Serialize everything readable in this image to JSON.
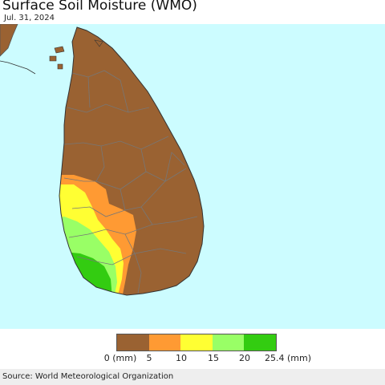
{
  "header": {
    "title": "Surface Soil Moisture (WMO)",
    "date": "Jul. 31, 2024"
  },
  "map": {
    "ocean_color": "#ccfcff",
    "land_color": "#9a6232",
    "border_color": "#777777",
    "region": "Sri Lanka",
    "moisture_zones": [
      {
        "level": "5-10",
        "color": "#ff9a33"
      },
      {
        "level": "10-15",
        "color": "#ffff33"
      },
      {
        "level": "15-20",
        "color": "#99ff66"
      },
      {
        "level": "20-25.4",
        "color": "#33cc11"
      }
    ]
  },
  "legend": {
    "swatches": [
      {
        "range": "0-5",
        "color": "#9a6232"
      },
      {
        "range": "5-10",
        "color": "#ff9a33"
      },
      {
        "range": "10-15",
        "color": "#ffff33"
      },
      {
        "range": "15-20",
        "color": "#99ff66"
      },
      {
        "range": "20-25.4",
        "color": "#33cc11"
      }
    ],
    "labels": [
      "0 (mm)",
      "5",
      "10",
      "15",
      "20",
      "25.4 (mm)"
    ]
  },
  "footer": {
    "source": "Source: World Meteorological Organization"
  }
}
